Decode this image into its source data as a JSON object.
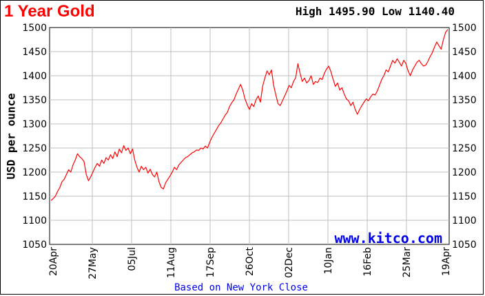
{
  "header": {
    "title": "1 Year Gold",
    "high_low": "High 1495.90 Low 1140.40"
  },
  "footer": {
    "note": "Based on New York Close"
  },
  "watermark": "www.kitco.com",
  "colors": {
    "line": "#ff0000",
    "title": "#ff0000",
    "link": "#0000ee",
    "grid": "#bfbfbf"
  },
  "chart_data": {
    "type": "line",
    "title": "1 Year Gold",
    "ylabel": "USD per ounce",
    "xlabel": "",
    "ylim": [
      1050,
      1500
    ],
    "yticks": [
      1050,
      1100,
      1150,
      1200,
      1250,
      1300,
      1350,
      1400,
      1450,
      1500
    ],
    "ytick_labels": [
      "1050",
      "1100",
      "1150",
      "1200",
      "1250",
      "1300",
      "1350",
      "1400",
      "1450",
      "1500"
    ],
    "xtick_labels": [
      "20Apr",
      "27May",
      "05Jul",
      "11Aug",
      "17Sep",
      "26Oct",
      "02Dec",
      "10Jan",
      "16Feb",
      "25Mar",
      "19Apr"
    ],
    "grid": true,
    "y_axis_both_sides": true,
    "series": [
      {
        "values": [
          1141,
          1145,
          1150,
          1160,
          1168,
          1180,
          1185,
          1195,
          1205,
          1200,
          1215,
          1225,
          1238,
          1232,
          1228,
          1222,
          1195,
          1182,
          1190,
          1200,
          1210,
          1218,
          1212,
          1225,
          1218,
          1230,
          1225,
          1236,
          1228,
          1242,
          1232,
          1248,
          1240,
          1255,
          1245,
          1250,
          1238,
          1248,
          1225,
          1210,
          1200,
          1212,
          1205,
          1210,
          1198,
          1206,
          1195,
          1190,
          1200,
          1180,
          1168,
          1165,
          1178,
          1185,
          1192,
          1200,
          1210,
          1205,
          1215,
          1220,
          1225,
          1230,
          1232,
          1236,
          1240,
          1242,
          1246,
          1245,
          1250,
          1248,
          1254,
          1250,
          1262,
          1272,
          1280,
          1288,
          1296,
          1302,
          1310,
          1318,
          1324,
          1336,
          1344,
          1350,
          1362,
          1372,
          1382,
          1370,
          1352,
          1340,
          1330,
          1342,
          1336,
          1350,
          1358,
          1345,
          1378,
          1395,
          1410,
          1402,
          1412,
          1380,
          1360,
          1342,
          1338,
          1348,
          1358,
          1368,
          1380,
          1375,
          1388,
          1396,
          1425,
          1405,
          1388,
          1395,
          1385,
          1390,
          1400,
          1382,
          1388,
          1386,
          1395,
          1392,
          1405,
          1414,
          1420,
          1408,
          1392,
          1378,
          1385,
          1370,
          1375,
          1362,
          1352,
          1348,
          1338,
          1345,
          1330,
          1320,
          1330,
          1338,
          1345,
          1352,
          1348,
          1356,
          1362,
          1360,
          1368,
          1380,
          1392,
          1400,
          1412,
          1408,
          1420,
          1432,
          1426,
          1435,
          1428,
          1420,
          1432,
          1425,
          1410,
          1400,
          1412,
          1420,
          1428,
          1432,
          1425,
          1420,
          1422,
          1430,
          1440,
          1448,
          1460,
          1470,
          1462,
          1455,
          1475,
          1490,
          1496
        ]
      }
    ]
  }
}
